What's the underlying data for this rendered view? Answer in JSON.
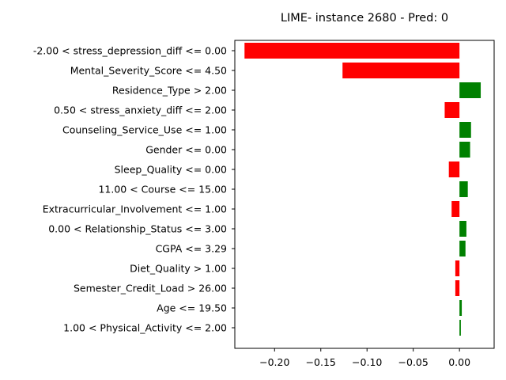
{
  "chart_data": {
    "type": "bar",
    "orientation": "horizontal",
    "title": "LIME- instance 2680 - Pred: 0",
    "xlabel": "",
    "ylabel": "",
    "xlim": [
      -0.243,
      0.0375
    ],
    "xticks": [
      -0.2,
      -0.15,
      -0.1,
      -0.05,
      0.0
    ],
    "xtick_labels": [
      "−0.20",
      "−0.15",
      "−0.10",
      "−0.05",
      "0.00"
    ],
    "grid": false,
    "positive_color": "#008000",
    "negative_color": "#ff0000",
    "categories": [
      "-2.00 < stress_depression_diff <= 0.00",
      "Mental_Severity_Score <= 4.50",
      "Residence_Type > 2.00",
      "0.50 < stress_anxiety_diff <= 2.00",
      "Counseling_Service_Use <= 1.00",
      "Gender <= 0.00",
      "Sleep_Quality <= 0.00",
      "11.00 < Course <= 15.00",
      "Extracurricular_Involvement <= 1.00",
      "0.00 < Relationship_Status <= 3.00",
      "CGPA <= 3.29",
      "Diet_Quality > 1.00",
      "Semester_Credit_Load > 26.00",
      "Age <= 19.50",
      "1.00 < Physical_Activity <= 2.00"
    ],
    "values": [
      -0.2325,
      -0.1265,
      0.023,
      -0.016,
      0.0125,
      0.0115,
      -0.0115,
      0.009,
      -0.0085,
      0.0075,
      0.0065,
      -0.0045,
      -0.0045,
      0.0025,
      0.0015
    ]
  }
}
